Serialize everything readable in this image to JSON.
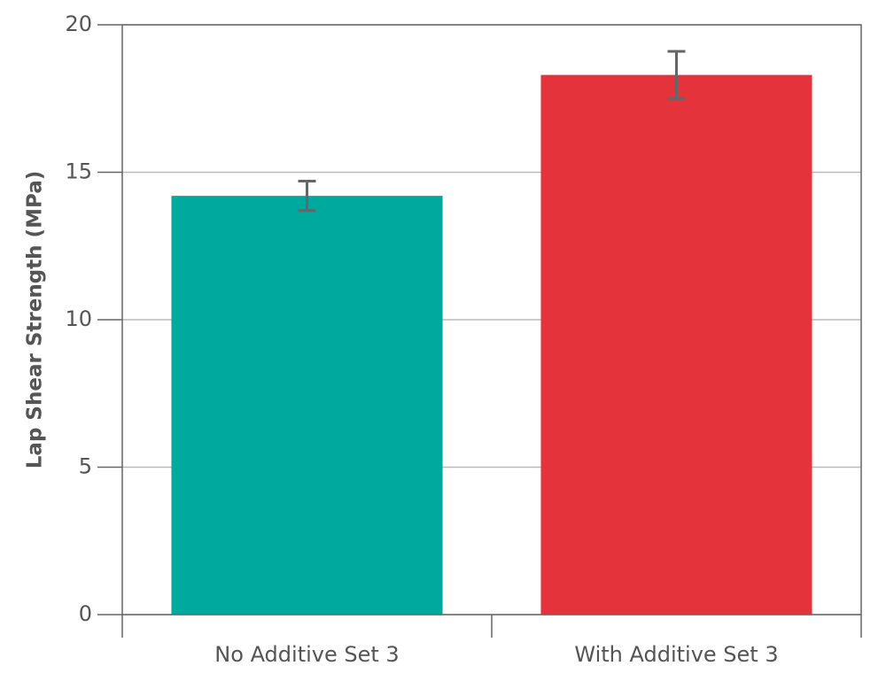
{
  "chart_data": {
    "type": "bar",
    "y_label": "Lap Shear Strength (MPa)",
    "categories": [
      "No Additive Set 3",
      "With Additive Set 3"
    ],
    "values": [
      14.2,
      18.3
    ],
    "errors": [
      0.5,
      0.8
    ],
    "colors": [
      "#00a99d",
      "#e4333a"
    ],
    "error_color": "#666666",
    "ylim": [
      0,
      20
    ],
    "yticks": [
      0,
      5,
      10,
      15,
      20
    ],
    "grid": true
  }
}
